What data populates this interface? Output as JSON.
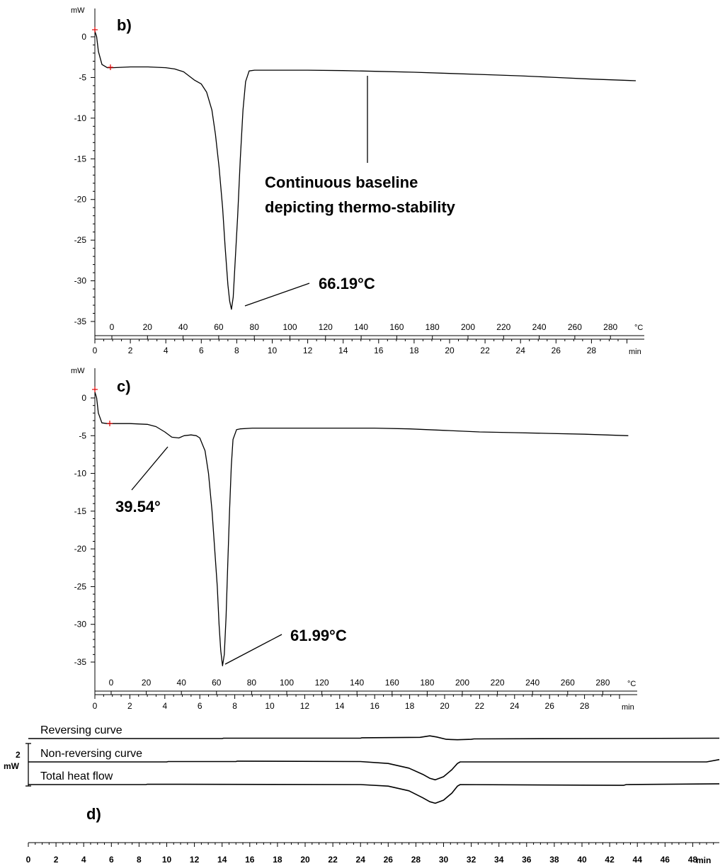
{
  "chart_data": [
    {
      "type": "line",
      "panel_label": "b)",
      "y_unit": "mW",
      "x_unit": "min",
      "x2_unit": "°C",
      "ylim": [
        -36,
        1
      ],
      "xlim": [
        0,
        31
      ],
      "y_ticks": [
        "0",
        "-5",
        "-10",
        "-15",
        "-20",
        "-25",
        "-30",
        "-35"
      ],
      "x_ticks": [
        "0",
        "2",
        "4",
        "6",
        "8",
        "10",
        "12",
        "14",
        "16",
        "18",
        "20",
        "22",
        "24",
        "26",
        "28"
      ],
      "x2_ticks": [
        "0",
        "20",
        "40",
        "60",
        "80",
        "100",
        "120",
        "140",
        "160",
        "180",
        "200",
        "220",
        "240",
        "260",
        "280"
      ],
      "annotations": [
        "66.19°C",
        "Continuous baseline",
        "depicting thermo-stability"
      ],
      "series": [
        {
          "x": [
            0,
            0.1,
            0.2,
            0.4,
            0.7,
            1,
            2,
            3,
            4,
            4.5,
            5,
            5.3,
            5.6,
            6,
            6.3,
            6.6,
            6.8,
            7.0,
            7.2,
            7.35,
            7.5,
            7.6,
            7.7,
            7.8,
            7.9,
            8.05,
            8.2,
            8.35,
            8.5,
            8.7,
            9,
            10,
            12,
            14,
            16,
            18,
            20,
            22,
            24,
            26,
            28,
            30.5
          ],
          "y": [
            0.7,
            0,
            -1.8,
            -3.4,
            -3.8,
            -3.8,
            -3.7,
            -3.7,
            -3.8,
            -3.95,
            -4.3,
            -4.8,
            -5.3,
            -5.8,
            -6.8,
            -9,
            -12,
            -16,
            -21,
            -26,
            -30.5,
            -32.5,
            -33.5,
            -32,
            -28,
            -22,
            -15,
            -9,
            -5.5,
            -4.2,
            -4.1,
            -4.1,
            -4.1,
            -4.15,
            -4.25,
            -4.35,
            -4.5,
            -4.65,
            -4.8,
            -5.0,
            -5.2,
            -5.4
          ]
        }
      ]
    },
    {
      "type": "line",
      "panel_label": "c)",
      "y_unit": "mW",
      "x_unit": "min",
      "x2_unit": "°C",
      "ylim": [
        -37,
        1
      ],
      "xlim": [
        0,
        31
      ],
      "y_ticks": [
        "0",
        "-5",
        "-10",
        "-15",
        "-20",
        "-25",
        "-30",
        "-35"
      ],
      "x_ticks": [
        "0",
        "2",
        "4",
        "6",
        "8",
        "10",
        "12",
        "14",
        "16",
        "18",
        "20",
        "22",
        "24",
        "26",
        "28"
      ],
      "x2_ticks": [
        "0",
        "20",
        "40",
        "60",
        "80",
        "100",
        "120",
        "140",
        "160",
        "180",
        "200",
        "220",
        "240",
        "260",
        "280"
      ],
      "annotations": [
        "39.54°",
        "61.99°C"
      ],
      "series": [
        {
          "x": [
            0,
            0.1,
            0.2,
            0.4,
            0.7,
            1,
            2,
            3,
            3.5,
            4,
            4.4,
            4.8,
            5.1,
            5.5,
            5.8,
            6,
            6.3,
            6.5,
            6.7,
            6.85,
            7.0,
            7.1,
            7.2,
            7.3,
            7.4,
            7.5,
            7.6,
            7.7,
            7.8,
            7.9,
            8.1,
            8.3,
            9,
            10,
            12,
            14,
            16,
            18,
            20,
            22,
            24,
            26,
            28,
            30.5
          ],
          "y": [
            0.8,
            0,
            -2,
            -3.3,
            -3.4,
            -3.4,
            -3.4,
            -3.5,
            -3.8,
            -4.5,
            -5.2,
            -5.3,
            -5.0,
            -4.9,
            -5.0,
            -5.3,
            -7,
            -10,
            -15,
            -20,
            -25,
            -30,
            -33.5,
            -35.5,
            -34,
            -29,
            -22,
            -15,
            -9,
            -5.5,
            -4.2,
            -4.1,
            -4.0,
            -4.0,
            -4.0,
            -4.0,
            -4.0,
            -4.1,
            -4.3,
            -4.5,
            -4.6,
            -4.7,
            -4.8,
            -5.0
          ]
        }
      ]
    },
    {
      "type": "line",
      "panel_label": "d)",
      "scale_value": "2",
      "scale_unit": "mW",
      "x_unit": "min",
      "xlim": [
        0,
        50
      ],
      "x_ticks": [
        "0",
        "2",
        "4",
        "6",
        "8",
        "10",
        "12",
        "14",
        "16",
        "18",
        "20",
        "22",
        "24",
        "26",
        "28",
        "30",
        "32",
        "34",
        "36",
        "38",
        "40",
        "42",
        "44",
        "46",
        "48"
      ],
      "series": [
        {
          "name": "Reversing curve",
          "x": [
            0,
            14,
            14.1,
            24,
            24.1,
            28.3,
            29,
            29.5,
            30.2,
            31,
            32,
            32.2,
            50
          ],
          "y": [
            0,
            0,
            0.05,
            0.05,
            0.1,
            0.15,
            0.35,
            0.2,
            -0.1,
            -0.15,
            -0.1,
            -0.05,
            0.05
          ]
        },
        {
          "name": "Non-reversing curve",
          "x": [
            0,
            10,
            10.1,
            15,
            15.1,
            24,
            26,
            27.5,
            28.5,
            29,
            29.4,
            30,
            30.6,
            31,
            31.2,
            49,
            50
          ],
          "y": [
            0,
            0,
            0.05,
            0.05,
            0.1,
            0.05,
            -0.2,
            -0.8,
            -1.6,
            -2.1,
            -2.3,
            -1.9,
            -1.0,
            -0.2,
            0,
            0,
            0.3
          ]
        },
        {
          "name": "Total heat flow",
          "x": [
            0,
            8.5,
            8.6,
            24,
            26,
            27.5,
            28.5,
            29,
            29.4,
            30,
            30.6,
            31,
            31.2,
            43,
            43.2,
            50
          ],
          "y": [
            0,
            0,
            0.05,
            0,
            -0.2,
            -0.8,
            -1.7,
            -2.2,
            -2.4,
            -2.0,
            -1.1,
            -0.2,
            0,
            -0.1,
            0,
            0.1
          ]
        }
      ]
    }
  ]
}
